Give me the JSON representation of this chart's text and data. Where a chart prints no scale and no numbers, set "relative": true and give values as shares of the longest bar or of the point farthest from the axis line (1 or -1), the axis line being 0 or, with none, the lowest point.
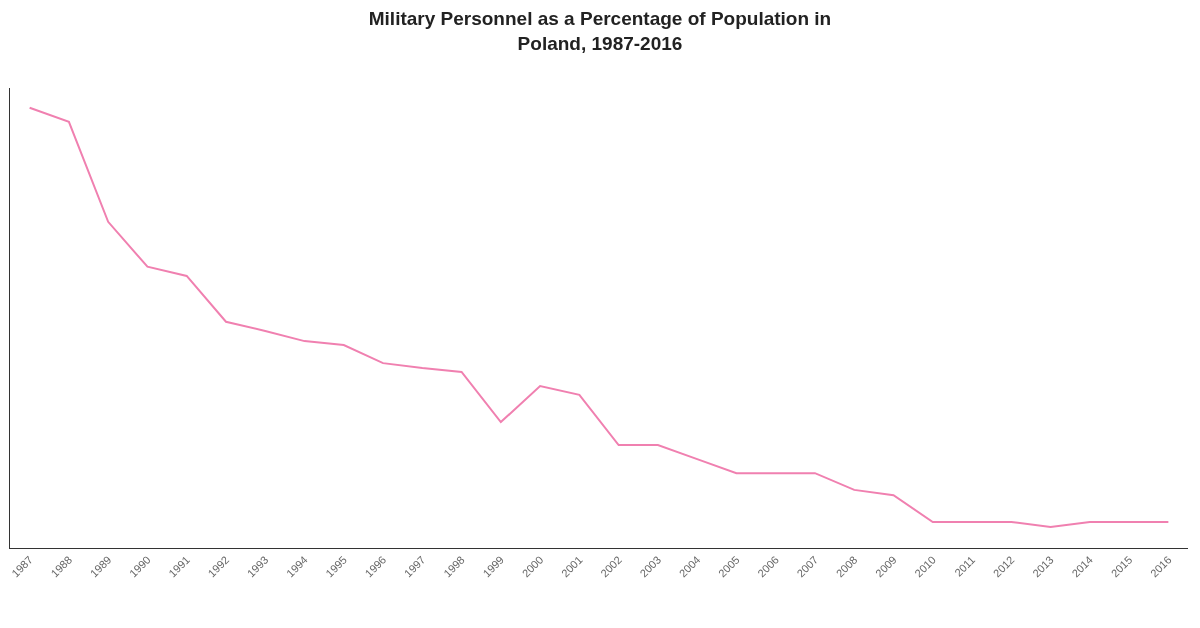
{
  "chart_data": {
    "type": "line",
    "title": "Military Personnel as a Percentage of Population in\nPoland, 1987-2016",
    "relative": true,
    "marker": "none",
    "line_style": "solid",
    "categories": [
      "1987",
      "1988",
      "1989",
      "1990",
      "1991",
      "1992",
      "1993",
      "1994",
      "1995",
      "1996",
      "1997",
      "1998",
      "1999",
      "2000",
      "2001",
      "2002",
      "2003",
      "2004",
      "2005",
      "2006",
      "2007",
      "2008",
      "2009",
      "2010",
      "2011",
      "2012",
      "2013",
      "2014",
      "2015",
      "2016"
    ],
    "series": [
      {
        "color": "#f080b0",
        "values": [
          1.0,
          0.968,
          0.741,
          0.639,
          0.618,
          0.514,
          0.493,
          0.47,
          0.461,
          0.42,
          0.409,
          0.4,
          0.286,
          0.368,
          0.348,
          0.234,
          0.234,
          0.202,
          0.17,
          0.17,
          0.17,
          0.132,
          0.12,
          0.059,
          0.059,
          0.059,
          0.048,
          0.059,
          0.059,
          0.059
        ]
      }
    ]
  }
}
